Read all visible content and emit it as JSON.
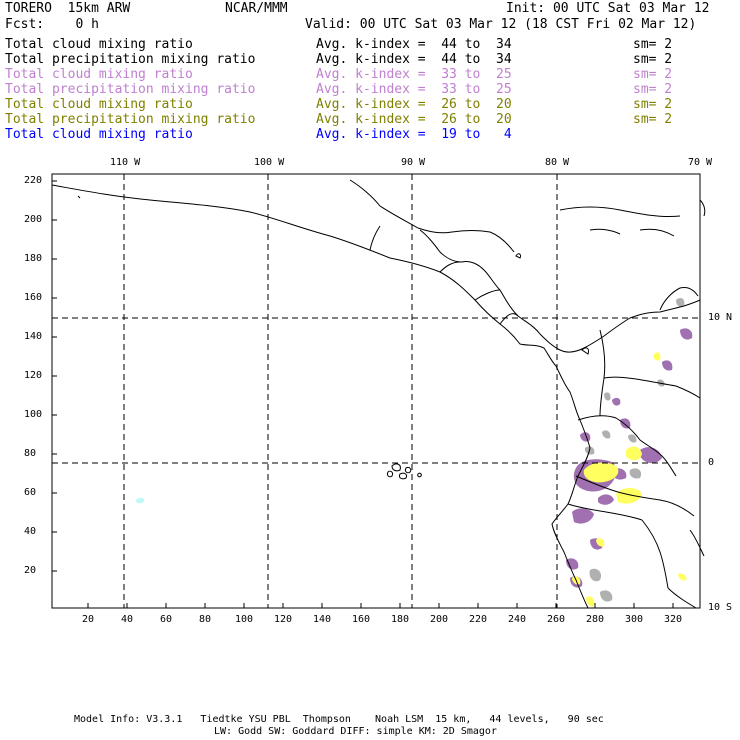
{
  "header": {
    "model": "TORERO  15km ARW",
    "org": "NCAR/MMM",
    "init": "Init: 00 UTC Sat 03 Mar 12",
    "fcst": "Fcst:    0 h",
    "valid": "Valid: 00 UTC Sat 03 Mar 12 (18 CST Fri 02 Mar 12)"
  },
  "legend": [
    {
      "field": "Total cloud mixing ratio",
      "kindex": "Avg. k-index =  44 to  34",
      "sm": "sm= 2",
      "color": "#000000"
    },
    {
      "field": "Total precipitation mixing ratio",
      "kindex": "Avg. k-index =  44 to  34",
      "sm": "sm= 2",
      "color": "#000000"
    },
    {
      "field": "Total cloud mixing ratio",
      "kindex": "Avg. k-index =  33 to  25",
      "sm": "sm= 2",
      "color": "#c080d0"
    },
    {
      "field": "Total precipitation mixing ratio",
      "kindex": "Avg. k-index =  33 to  25",
      "sm": "sm= 2",
      "color": "#c080d0"
    },
    {
      "field": "Total cloud mixing ratio",
      "kindex": "Avg. k-index =  26 to  20",
      "sm": "sm= 2",
      "color": "#808000"
    },
    {
      "field": "Total precipitation mixing ratio",
      "kindex": "Avg. k-index =  26 to  20",
      "sm": "sm= 2",
      "color": "#808000"
    },
    {
      "field": "Total cloud mixing ratio",
      "kindex": "Avg. k-index =  19 to   4",
      "sm": "",
      "color": "#0000ff"
    }
  ],
  "axes": {
    "lon_labels": [
      "110 W",
      "100 W",
      "90 W",
      "80 W",
      "70 W"
    ],
    "lat_labels": [
      "10 N",
      "0",
      "10 S"
    ],
    "y_ticks": [
      "220",
      "200",
      "180",
      "160",
      "140",
      "120",
      "100",
      "80",
      "60",
      "40",
      "20"
    ],
    "x_ticks": [
      "20",
      "40",
      "60",
      "80",
      "100",
      "120",
      "140",
      "160",
      "180",
      "200",
      "220",
      "240",
      "260",
      "280",
      "300",
      "320"
    ]
  },
  "colors": {
    "purple": "#a070b0",
    "gray": "#b0b0b0",
    "yellow": "#ffff60",
    "cyan": "#c0f8f8"
  },
  "footer": {
    "line1": "Model Info: V3.3.1   Tiedtke YSU PBL  Thompson    Noah LSM  15 km,   44 levels,   90 sec",
    "line2": "LW: Godd SW: Goddard DIFF: simple KM: 2D Smagor"
  }
}
